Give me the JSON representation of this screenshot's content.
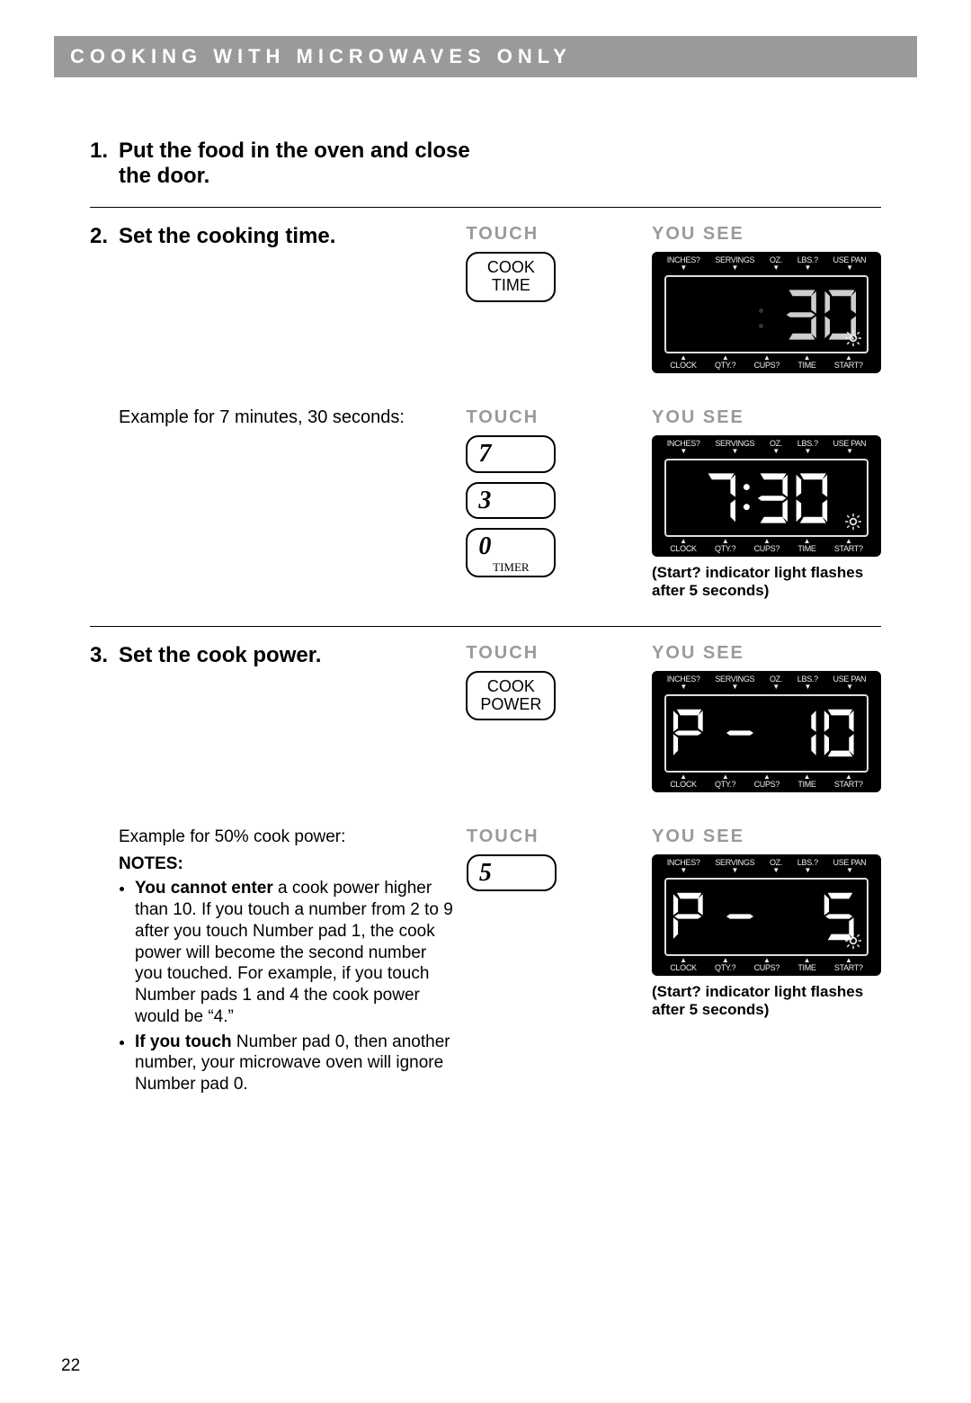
{
  "header": "Cooking With Microwaves Only",
  "page_number": "22",
  "colors": {
    "header_bg": "#9a9a9a",
    "header_fg": "#ffffff",
    "label_grey": "#9a9a9a",
    "lcd_bg": "#000000",
    "lcd_fg": "#eeeeee"
  },
  "lcd_top_labels": [
    "INCHES?",
    "SERVINGS",
    "OZ.",
    "LBS.?",
    "USE PAN"
  ],
  "lcd_bot_labels": [
    "CLOCK",
    "QTY.?",
    "CUPS?",
    "TIME",
    "START?"
  ],
  "labels": {
    "touch": "Touch",
    "you_see": "You See"
  },
  "steps": {
    "s1": {
      "num": "1.",
      "title": "Put the food in the oven and close the door."
    },
    "s2": {
      "num": "2.",
      "title": "Set the cooking time.",
      "button1": "COOK\nTIME",
      "display1": {
        "text": ":30",
        "mode": "time-right",
        "colon": "dim"
      },
      "example_text": "Example for 7 minutes, 30 seconds:",
      "buttons2": [
        "7",
        "3",
        "0"
      ],
      "button2_sub": "TIMER",
      "display2": {
        "text": "7:30",
        "mode": "time",
        "colon": "bright"
      },
      "caption2": "(Start? indicator light flashes after 5 seconds)"
    },
    "s3": {
      "num": "3.",
      "title": "Set the cook power.",
      "button1": "COOK\nPOWER",
      "display1": {
        "text": "P-10",
        "mode": "power"
      },
      "example_text": "Example for 50% cook power:",
      "notes_title": "NOTES:",
      "note1_bold": "You cannot enter",
      "note1_rest": " a cook power higher than 10. If you touch a number from 2 to 9 after you touch Number pad 1, the cook power will become the second number you touched. For example, if you touch Number pads 1 and 4 the cook power would be “4.”",
      "note2_bold": "If you touch",
      "note2_rest": " Number pad 0, then another number, your microwave oven will ignore Number pad 0.",
      "button2": "5",
      "display2": {
        "text": "P-5",
        "mode": "power-right"
      },
      "caption2": "(Start? indicator light flashes after 5 seconds)"
    }
  }
}
